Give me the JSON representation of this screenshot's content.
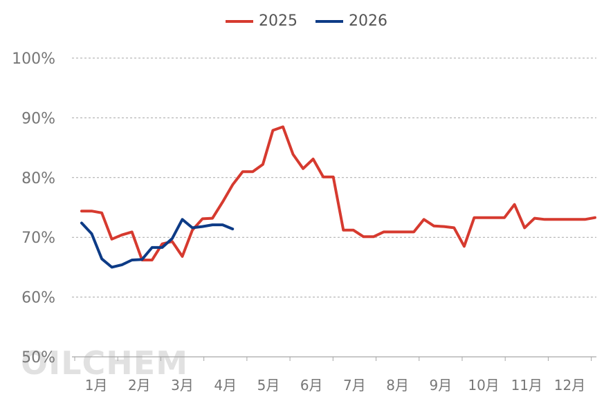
{
  "watermark": "OILCHEM",
  "chart_data": {
    "type": "line",
    "y_tick_labels": [
      "50%",
      "60%",
      "70%",
      "80%",
      "90%",
      "100%"
    ],
    "ylim": [
      50,
      100
    ],
    "x_tick_labels": [
      "1月",
      "2月",
      "3月",
      "4月",
      "5月",
      "6月",
      "7月",
      "8月",
      "9月",
      "10月",
      "11月",
      "12月"
    ],
    "xlim": [
      0,
      51
    ],
    "grid": true,
    "legend": "top-center",
    "series": [
      {
        "name": "2025",
        "color": "#d63a2f",
        "points": [
          [
            0,
            74.4
          ],
          [
            1,
            74.4
          ],
          [
            2,
            74.1
          ],
          [
            3,
            69.7
          ],
          [
            4,
            70.4
          ],
          [
            5,
            70.9
          ],
          [
            6,
            66.2
          ],
          [
            7,
            66.2
          ],
          [
            8,
            68.9
          ],
          [
            9,
            69.3
          ],
          [
            10,
            66.8
          ],
          [
            11,
            71.2
          ],
          [
            12,
            73.1
          ],
          [
            13,
            73.2
          ],
          [
            14,
            75.9
          ],
          [
            15,
            78.8
          ],
          [
            16,
            81.0
          ],
          [
            17,
            81.0
          ],
          [
            18,
            82.2
          ],
          [
            19,
            87.9
          ],
          [
            20,
            88.5
          ],
          [
            21,
            83.9
          ],
          [
            22,
            81.5
          ],
          [
            23,
            83.1
          ],
          [
            24,
            80.1
          ],
          [
            25,
            80.1
          ],
          [
            26,
            71.2
          ],
          [
            27,
            71.2
          ],
          [
            28,
            70.1
          ],
          [
            29,
            70.1
          ],
          [
            30,
            70.9
          ],
          [
            31,
            70.9
          ],
          [
            32,
            70.9
          ],
          [
            33,
            70.9
          ],
          [
            34,
            73.0
          ],
          [
            35,
            71.9
          ],
          [
            36,
            71.8
          ],
          [
            37,
            71.6
          ],
          [
            38,
            68.5
          ],
          [
            39,
            73.3
          ],
          [
            40,
            73.3
          ],
          [
            41,
            73.3
          ],
          [
            42,
            73.3
          ],
          [
            43,
            75.5
          ],
          [
            44,
            71.6
          ],
          [
            45,
            73.2
          ],
          [
            46,
            73.0
          ],
          [
            47,
            73.0
          ],
          [
            48,
            73.0
          ],
          [
            49,
            73.0
          ],
          [
            50,
            73.0
          ],
          [
            51,
            73.3
          ]
        ]
      },
      {
        "name": "2026",
        "color": "#0d3b86",
        "points": [
          [
            0,
            72.4
          ],
          [
            1,
            70.6
          ],
          [
            2,
            66.4
          ],
          [
            3,
            65.0
          ],
          [
            4,
            65.4
          ],
          [
            5,
            66.2
          ],
          [
            6,
            66.3
          ],
          [
            7,
            68.3
          ],
          [
            8,
            68.3
          ],
          [
            9,
            69.8
          ],
          [
            10,
            73.0
          ],
          [
            11,
            71.6
          ],
          [
            12,
            71.8
          ],
          [
            13,
            72.1
          ],
          [
            14,
            72.1
          ],
          [
            15,
            71.4
          ]
        ]
      }
    ]
  }
}
